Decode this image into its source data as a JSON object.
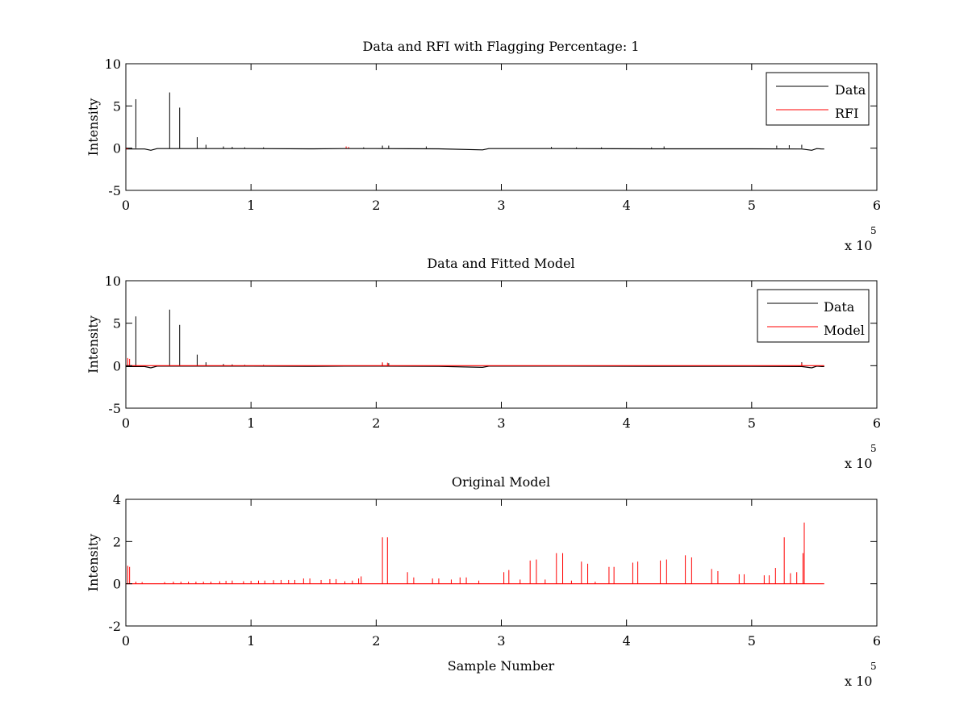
{
  "chart_data": [
    {
      "type": "line",
      "title": "Data and RFI with Flagging Percentage: 1",
      "xlabel": "",
      "ylabel": "Intensity",
      "xlim": [
        0,
        600000
      ],
      "ylim": [
        -5,
        10
      ],
      "xticks": [
        0,
        1,
        2,
        3,
        4,
        5,
        6
      ],
      "yticks": [
        -5,
        0,
        5,
        10
      ],
      "x_multiplier": "x 10",
      "x_multiplier_exp": "5",
      "grid": false,
      "legend_position": "top-right",
      "series": [
        {
          "name": "Data",
          "color": "#000000",
          "baseline": [
            [
              0,
              -0.1
            ],
            [
              15000,
              -0.1
            ],
            [
              20000,
              -0.25
            ],
            [
              25000,
              -0.05
            ],
            [
              50000,
              -0.05
            ],
            [
              100000,
              -0.05
            ],
            [
              150000,
              -0.08
            ],
            [
              175000,
              -0.05
            ],
            [
              200000,
              -0.05
            ],
            [
              250000,
              -0.08
            ],
            [
              285000,
              -0.2
            ],
            [
              290000,
              -0.05
            ],
            [
              350000,
              -0.05
            ],
            [
              420000,
              -0.08
            ],
            [
              500000,
              -0.08
            ],
            [
              540000,
              -0.1
            ],
            [
              548000,
              -0.25
            ],
            [
              552000,
              -0.05
            ],
            [
              556000,
              -0.1
            ],
            [
              558000,
              -0.1
            ]
          ],
          "spikes": [
            [
              8000,
              5.8
            ],
            [
              35000,
              6.6
            ],
            [
              43000,
              4.8
            ],
            [
              57000,
              1.3
            ],
            [
              64000,
              0.4
            ],
            [
              78000,
              0.2
            ],
            [
              85000,
              0.15
            ],
            [
              95000,
              0.1
            ],
            [
              110000,
              0.1
            ],
            [
              190000,
              0.1
            ],
            [
              205000,
              0.3
            ],
            [
              210000,
              0.3
            ],
            [
              240000,
              0.2
            ],
            [
              340000,
              0.15
            ],
            [
              360000,
              0.1
            ],
            [
              380000,
              0.1
            ],
            [
              420000,
              0.1
            ],
            [
              430000,
              0.2
            ],
            [
              520000,
              0.3
            ],
            [
              530000,
              0.35
            ],
            [
              540000,
              0.4
            ]
          ]
        },
        {
          "name": "RFI",
          "color": "#ff0000",
          "baseline": [
            [
              0,
              -0.05
            ],
            [
              2000,
              -0.05
            ]
          ],
          "spikes": [
            [
              176000,
              0.2
            ],
            [
              178000,
              0.15
            ]
          ]
        }
      ]
    },
    {
      "type": "line",
      "title": "Data and Fitted Model",
      "xlabel": "",
      "ylabel": "Intensity",
      "xlim": [
        0,
        600000
      ],
      "ylim": [
        -5,
        10
      ],
      "xticks": [
        0,
        1,
        2,
        3,
        4,
        5,
        6
      ],
      "yticks": [
        -5,
        0,
        5,
        10
      ],
      "x_multiplier": "x 10",
      "x_multiplier_exp": "5",
      "grid": false,
      "legend_position": "top-right",
      "series": [
        {
          "name": "Data",
          "color": "#000000",
          "baseline": [
            [
              0,
              -0.1
            ],
            [
              15000,
              -0.1
            ],
            [
              20000,
              -0.25
            ],
            [
              25000,
              -0.05
            ],
            [
              50000,
              -0.05
            ],
            [
              100000,
              -0.05
            ],
            [
              150000,
              -0.08
            ],
            [
              175000,
              -0.05
            ],
            [
              200000,
              -0.05
            ],
            [
              250000,
              -0.08
            ],
            [
              285000,
              -0.2
            ],
            [
              290000,
              -0.05
            ],
            [
              350000,
              -0.05
            ],
            [
              420000,
              -0.08
            ],
            [
              500000,
              -0.08
            ],
            [
              540000,
              -0.1
            ],
            [
              548000,
              -0.25
            ],
            [
              552000,
              -0.05
            ],
            [
              556000,
              -0.1
            ],
            [
              558000,
              -0.1
            ]
          ],
          "spikes": [
            [
              8000,
              5.8
            ],
            [
              35000,
              6.6
            ],
            [
              43000,
              4.8
            ],
            [
              57000,
              1.3
            ],
            [
              64000,
              0.4
            ],
            [
              78000,
              0.2
            ],
            [
              85000,
              0.15
            ],
            [
              95000,
              0.1
            ],
            [
              110000,
              0.1
            ],
            [
              205000,
              0.3
            ],
            [
              210000,
              0.3
            ],
            [
              540000,
              0.4
            ]
          ]
        },
        {
          "name": "Model",
          "color": "#ff0000",
          "baseline": [
            [
              0,
              0
            ],
            [
              558000,
              0
            ]
          ],
          "spikes": [
            [
              1500,
              0.9
            ],
            [
              3000,
              0.8
            ],
            [
              205000,
              0.4
            ],
            [
              209000,
              0.35
            ],
            [
              540000,
              0.3
            ]
          ]
        }
      ]
    },
    {
      "type": "line",
      "title": "Original Model",
      "xlabel": "Sample Number",
      "ylabel": "Intensity",
      "xlim": [
        0,
        600000
      ],
      "ylim": [
        -2,
        4
      ],
      "xticks": [
        0,
        1,
        2,
        3,
        4,
        5,
        6
      ],
      "yticks": [
        -2,
        0,
        2,
        4
      ],
      "x_multiplier": "x 10",
      "x_multiplier_exp": "5",
      "grid": false,
      "series": [
        {
          "color": "#ff0000",
          "baseline": [
            [
              0,
              0
            ],
            [
              558000,
              0
            ]
          ],
          "spikes": [
            [
              1500,
              0.85
            ],
            [
              3000,
              0.8
            ],
            [
              8000,
              0.1
            ],
            [
              13000,
              0.08
            ],
            [
              31000,
              0.08
            ],
            [
              38000,
              0.1
            ],
            [
              44000,
              0.1
            ],
            [
              50000,
              0.1
            ],
            [
              56000,
              0.1
            ],
            [
              62000,
              0.1
            ],
            [
              68000,
              0.1
            ],
            [
              75000,
              0.12
            ],
            [
              80000,
              0.14
            ],
            [
              85000,
              0.15
            ],
            [
              94000,
              0.12
            ],
            [
              100000,
              0.14
            ],
            [
              106000,
              0.15
            ],
            [
              111000,
              0.15
            ],
            [
              118000,
              0.17
            ],
            [
              124000,
              0.18
            ],
            [
              130000,
              0.18
            ],
            [
              135000,
              0.18
            ],
            [
              142000,
              0.25
            ],
            [
              147000,
              0.25
            ],
            [
              156000,
              0.18
            ],
            [
              163000,
              0.22
            ],
            [
              168000,
              0.22
            ],
            [
              175000,
              0.12
            ],
            [
              181000,
              0.15
            ],
            [
              186000,
              0.25
            ],
            [
              188000,
              0.35
            ],
            [
              205000,
              2.2
            ],
            [
              209000,
              2.2
            ],
            [
              225000,
              0.55
            ],
            [
              230000,
              0.3
            ],
            [
              245000,
              0.25
            ],
            [
              250000,
              0.25
            ],
            [
              260000,
              0.2
            ],
            [
              267000,
              0.3
            ],
            [
              272000,
              0.3
            ],
            [
              282000,
              0.15
            ],
            [
              302000,
              0.55
            ],
            [
              306000,
              0.65
            ],
            [
              315000,
              0.2
            ],
            [
              323000,
              1.1
            ],
            [
              328000,
              1.15
            ],
            [
              335000,
              0.2
            ],
            [
              344000,
              1.45
            ],
            [
              349000,
              1.45
            ],
            [
              356000,
              0.15
            ],
            [
              364000,
              1.05
            ],
            [
              369000,
              0.95
            ],
            [
              375000,
              0.1
            ],
            [
              386000,
              0.8
            ],
            [
              390000,
              0.8
            ],
            [
              405000,
              1.0
            ],
            [
              409000,
              1.05
            ],
            [
              427000,
              1.1
            ],
            [
              432000,
              1.15
            ],
            [
              447000,
              1.35
            ],
            [
              452000,
              1.25
            ],
            [
              468000,
              0.7
            ],
            [
              473000,
              0.6
            ],
            [
              490000,
              0.45
            ],
            [
              494000,
              0.45
            ],
            [
              510000,
              0.4
            ],
            [
              514000,
              0.4
            ],
            [
              519000,
              0.75
            ],
            [
              526000,
              2.2
            ],
            [
              531000,
              0.5
            ],
            [
              536000,
              0.55
            ],
            [
              541000,
              1.45
            ],
            [
              542000,
              2.9
            ]
          ]
        }
      ]
    }
  ]
}
